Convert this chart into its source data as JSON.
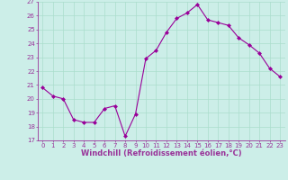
{
  "x": [
    0,
    1,
    2,
    3,
    4,
    5,
    6,
    7,
    8,
    9,
    10,
    11,
    12,
    13,
    14,
    15,
    16,
    17,
    18,
    19,
    20,
    21,
    22,
    23
  ],
  "y": [
    20.8,
    20.2,
    20.0,
    18.5,
    18.3,
    18.3,
    19.3,
    19.5,
    17.3,
    18.9,
    22.9,
    23.5,
    24.8,
    25.8,
    26.2,
    26.8,
    25.7,
    25.5,
    25.3,
    24.4,
    23.9,
    23.3,
    22.2,
    21.6
  ],
  "ylim": [
    17,
    27
  ],
  "yticks": [
    17,
    18,
    19,
    20,
    21,
    22,
    23,
    24,
    25,
    26,
    27
  ],
  "xticks": [
    0,
    1,
    2,
    3,
    4,
    5,
    6,
    7,
    8,
    9,
    10,
    11,
    12,
    13,
    14,
    15,
    16,
    17,
    18,
    19,
    20,
    21,
    22,
    23
  ],
  "xlabel": "Windchill (Refroidissement éolien,°C)",
  "line_color": "#990099",
  "marker": "D",
  "background_color": "#cceee8",
  "grid_color": "#aaddcc",
  "axis_color": "#993399",
  "tick_fontsize": 5.0,
  "xlabel_fontsize": 6.0
}
